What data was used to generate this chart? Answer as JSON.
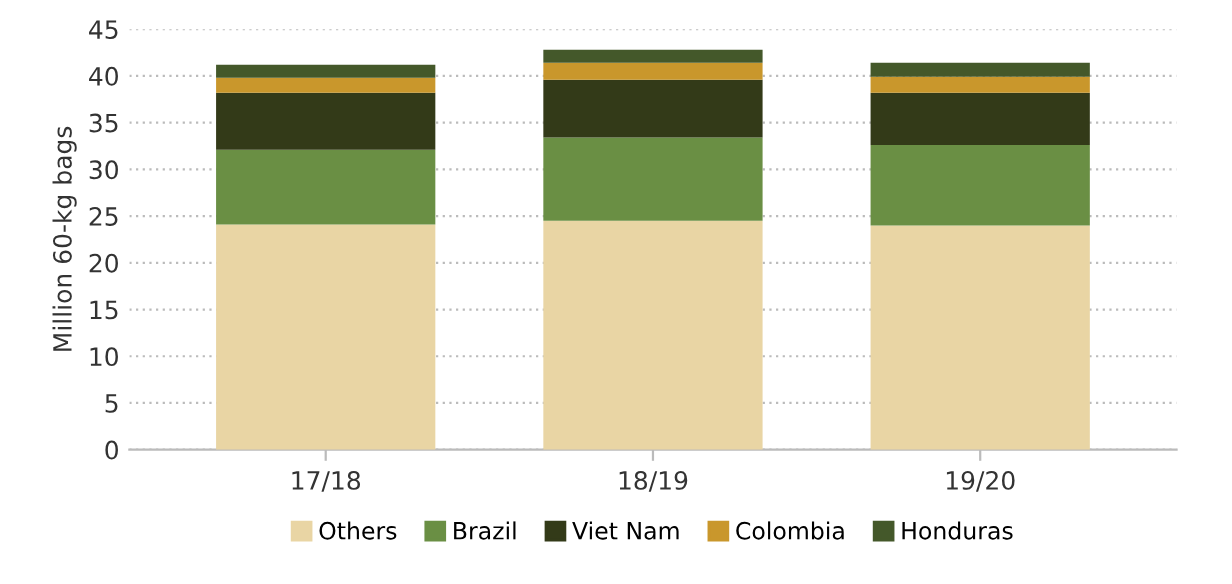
{
  "chart_data": {
    "type": "bar",
    "stacked": true,
    "ylabel": "Million 60-kg bags",
    "categories": [
      "17/18",
      "18/19",
      "19/20"
    ],
    "series": [
      {
        "name": "Others",
        "color": "#e9d5a4",
        "values": [
          24.1,
          24.5,
          24.0
        ]
      },
      {
        "name": "Brazil",
        "color": "#6a8f44",
        "values": [
          8.0,
          8.9,
          8.6
        ]
      },
      {
        "name": "Viet Nam",
        "color": "#333a18",
        "values": [
          6.1,
          6.2,
          5.6
        ]
      },
      {
        "name": "Colombia",
        "color": "#c9972c",
        "values": [
          1.6,
          1.8,
          1.7
        ]
      },
      {
        "name": "Honduras",
        "color": "#44582a",
        "values": [
          1.4,
          1.4,
          1.5
        ]
      }
    ],
    "ylim": [
      0,
      45
    ],
    "yticks": [
      0,
      5,
      10,
      15,
      20,
      25,
      30,
      35,
      40,
      45
    ],
    "grid": "y",
    "legend": "bottom"
  }
}
